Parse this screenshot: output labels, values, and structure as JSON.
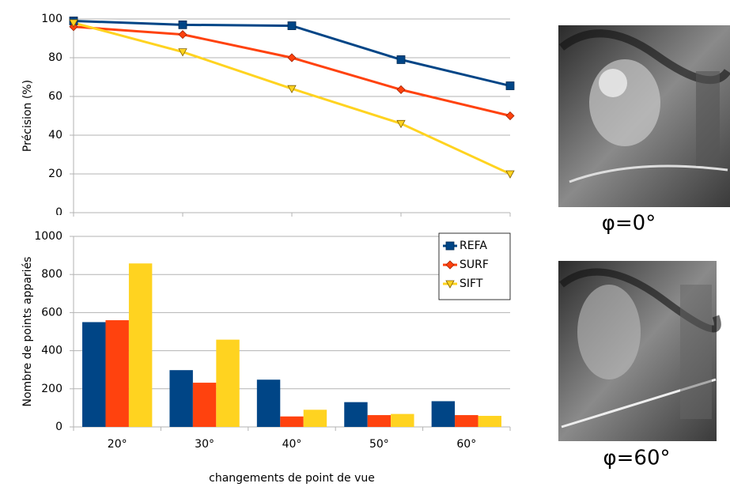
{
  "chart_data": [
    {
      "type": "line",
      "y_label": "Précision (%)",
      "ylim": [
        0,
        100
      ],
      "yticks": [
        0,
        20,
        40,
        60,
        80,
        100
      ],
      "grid": true,
      "series": [
        {
          "color": "#004586",
          "marker": "square",
          "values": [
            99,
            97,
            96.5,
            79,
            65.5
          ]
        },
        {
          "color": "#ff420e",
          "marker": "diamond",
          "values": [
            96,
            92,
            80,
            63.5,
            50
          ]
        },
        {
          "color": "#ffd320",
          "marker": "triangle-down",
          "values": [
            98,
            83,
            64,
            46,
            20
          ]
        }
      ]
    },
    {
      "type": "bar",
      "y_label": "Nombre de points appariés",
      "x_label": "changements de point de vue",
      "categories": [
        "20°",
        "30°",
        "40°",
        "50°",
        "60°"
      ],
      "ylim": [
        0,
        1000
      ],
      "yticks": [
        0,
        200,
        400,
        600,
        800,
        1000
      ],
      "grid": true,
      "legend": "upper right",
      "series": [
        {
          "name": "REFA",
          "color": "#004586",
          "values": [
            550,
            298,
            248,
            130,
            135
          ]
        },
        {
          "name": "SURF",
          "color": "#ff420e",
          "values": [
            560,
            232,
            55,
            62,
            62
          ]
        },
        {
          "name": "SIFT",
          "color": "#ffd320",
          "values": [
            858,
            458,
            90,
            68,
            58
          ]
        }
      ]
    }
  ],
  "images": [
    {
      "caption": "φ=0°"
    },
    {
      "caption": "φ=60°"
    }
  ]
}
